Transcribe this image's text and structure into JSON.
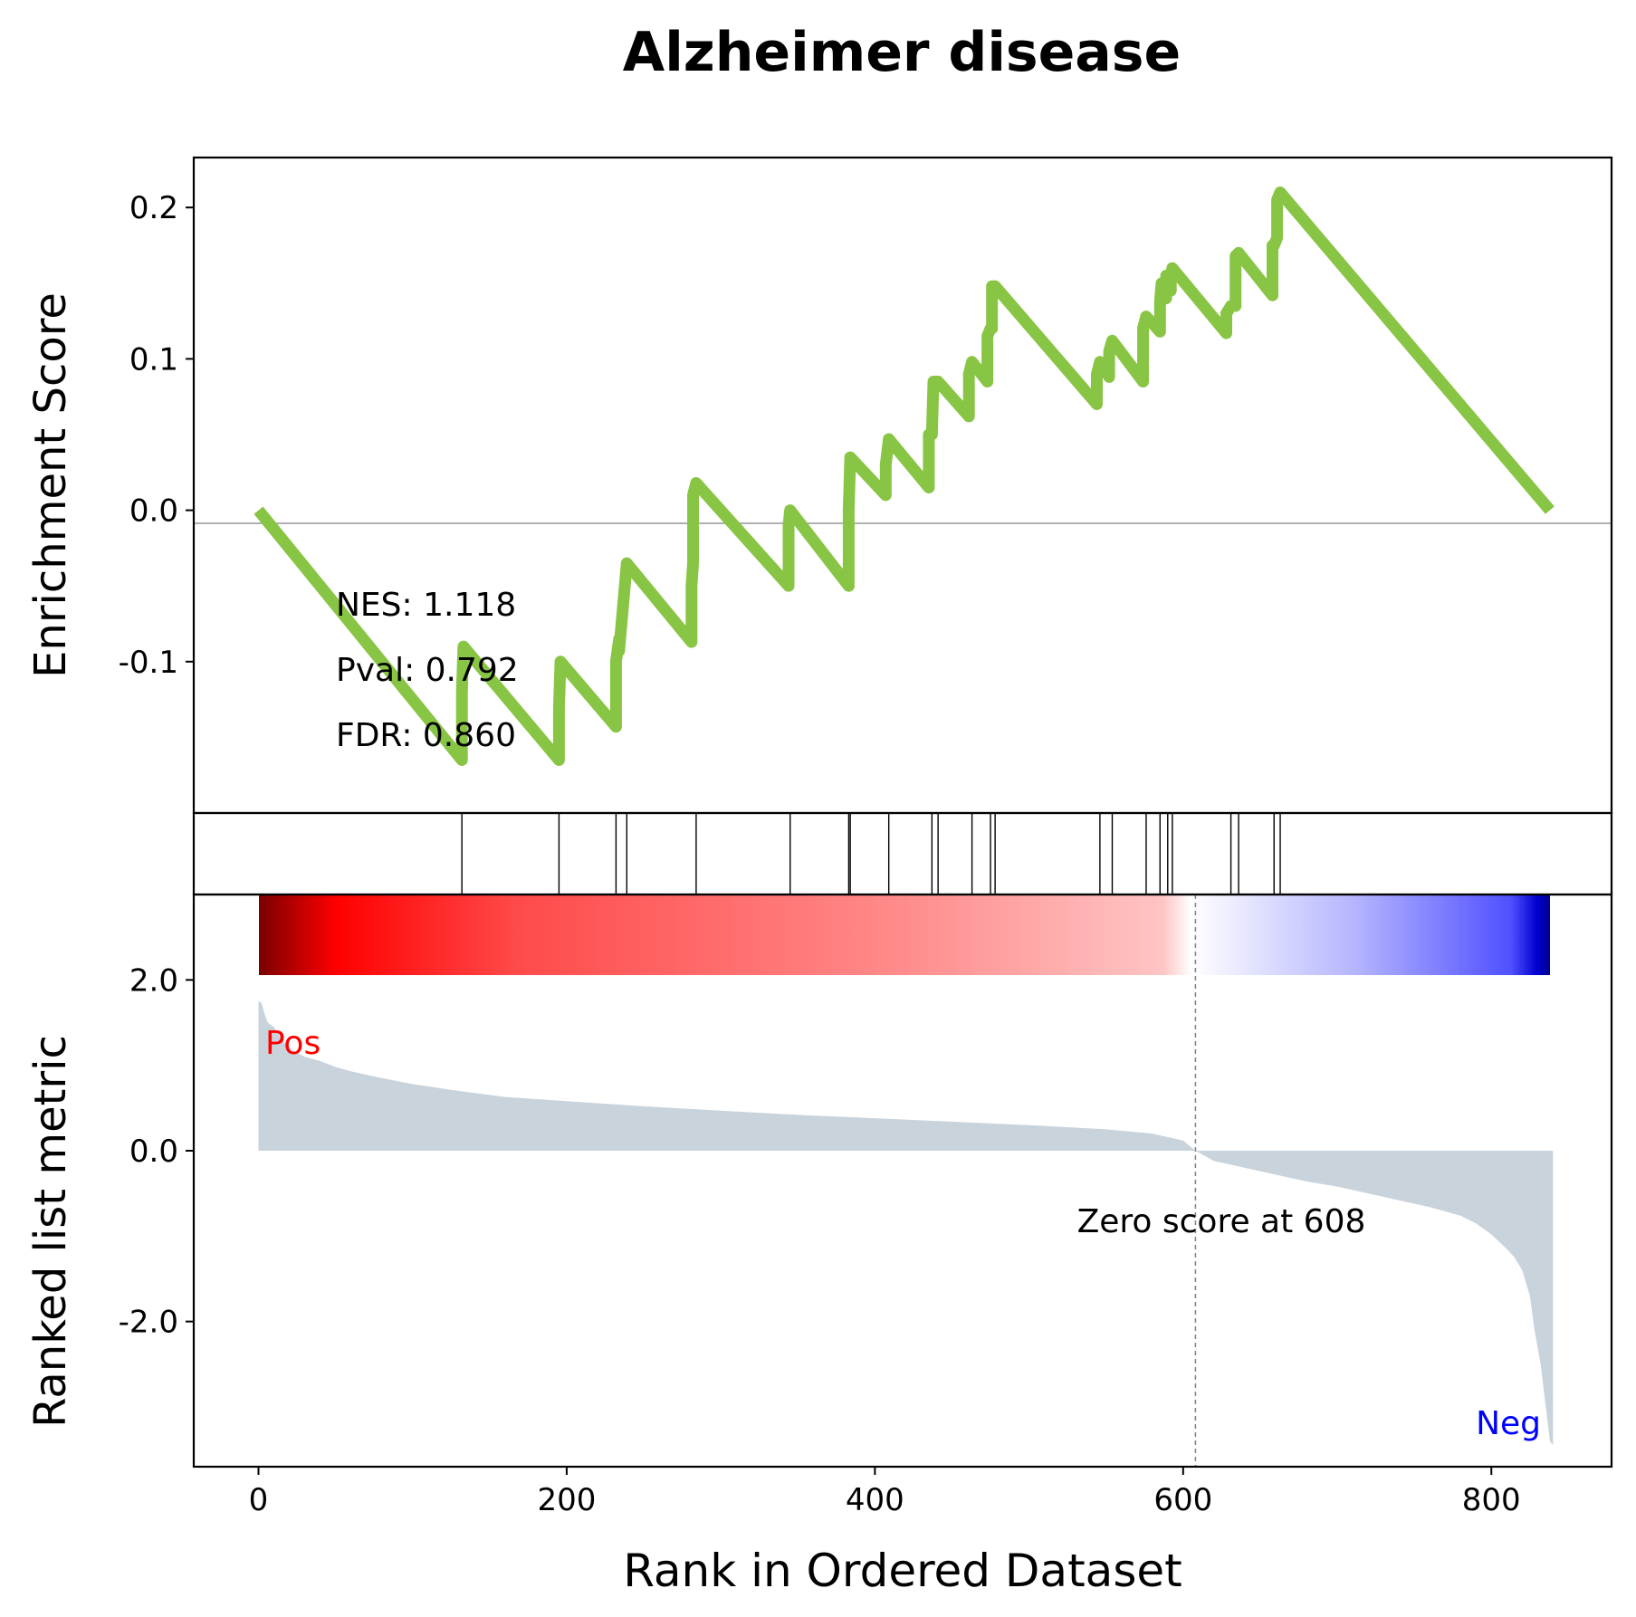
{
  "chart_data": {
    "type": "line",
    "title": "Alzheimer disease",
    "xlabel": "Rank in Ordered Dataset",
    "x_ticks": [
      0,
      200,
      400,
      600,
      800
    ],
    "xlim": [
      -42,
      878
    ],
    "enrichment_panel": {
      "ylabel": "Enrichment Score",
      "ylim": [
        -0.2,
        0.233
      ],
      "y_ticks": [
        -0.1,
        0.0,
        0.1,
        0.2
      ],
      "y_tick_labels": [
        "-0.1",
        "0.0",
        "0.1",
        "0.2"
      ],
      "color": "#88c544",
      "series": [
        {
          "x": [
            0,
            132,
            132,
            133,
            195,
            195,
            196,
            232,
            232,
            234,
            234,
            239,
            239,
            281,
            281,
            282,
            282,
            284,
            344,
            344,
            345,
            383,
            383,
            384,
            407,
            407,
            409,
            435,
            435,
            436,
            437,
            438,
            441,
            461,
            461,
            463,
            473,
            473,
            475,
            476,
            476,
            478,
            544,
            544,
            546,
            552,
            552,
            554,
            574,
            574,
            576,
            585,
            585,
            586,
            589,
            589,
            590,
            592,
            592,
            593,
            628,
            628,
            631,
            634,
            634,
            636,
            658,
            658,
            659,
            661,
            661,
            663,
            838
          ],
          "y": [
            0.0,
            -0.165,
            -0.12,
            -0.09,
            -0.165,
            -0.13,
            -0.1,
            -0.143,
            -0.1,
            -0.085,
            -0.093,
            -0.035,
            -0.035,
            -0.087,
            -0.05,
            -0.035,
            0.01,
            0.018,
            -0.05,
            -0.01,
            0.0,
            -0.05,
            0.0,
            0.035,
            0.01,
            0.03,
            0.047,
            0.015,
            0.05,
            0.05,
            0.05,
            0.085,
            0.085,
            0.062,
            0.09,
            0.098,
            0.085,
            0.115,
            0.12,
            0.12,
            0.148,
            0.148,
            0.07,
            0.09,
            0.098,
            0.088,
            0.105,
            0.112,
            0.085,
            0.12,
            0.128,
            0.118,
            0.138,
            0.15,
            0.14,
            0.155,
            0.155,
            0.145,
            0.155,
            0.16,
            0.117,
            0.13,
            0.135,
            0.135,
            0.168,
            0.17,
            0.142,
            0.175,
            0.175,
            0.18,
            0.205,
            0.21,
            0.0
          ]
        }
      ],
      "annotations": [
        "NES: 1.118",
        "Pval: 0.792",
        "FDR: 0.860"
      ]
    },
    "hits_panel": {
      "hit_ranks": [
        132,
        195,
        232,
        239,
        284,
        345,
        383,
        384,
        409,
        437,
        441,
        463,
        475,
        478,
        546,
        554,
        576,
        585,
        590,
        593,
        631,
        636,
        659,
        663
      ]
    },
    "ranked_panel": {
      "ylabel": "Ranked list metric",
      "ylim": [
        -3.7,
        3.0
      ],
      "y_ticks": [
        -2.0,
        0.0,
        2.0
      ],
      "y_tick_labels": [
        "-2.0",
        "0.0",
        "2.0"
      ],
      "fill_color": "#c9d3dc",
      "x": [
        0,
        2,
        4,
        6,
        10,
        15,
        20,
        30,
        40,
        50,
        60,
        80,
        100,
        130,
        160,
        200,
        250,
        300,
        350,
        400,
        450,
        500,
        550,
        580,
        600,
        608,
        620,
        640,
        660,
        680,
        700,
        720,
        740,
        760,
        780,
        790,
        800,
        810,
        815,
        820,
        825,
        828,
        830,
        832,
        834,
        836,
        838,
        840
      ],
      "y": [
        1.75,
        1.73,
        1.6,
        1.5,
        1.45,
        1.3,
        1.2,
        1.1,
        1.05,
        0.98,
        0.93,
        0.85,
        0.78,
        0.7,
        0.63,
        0.58,
        0.52,
        0.47,
        0.42,
        0.38,
        0.34,
        0.3,
        0.25,
        0.2,
        0.12,
        0.0,
        -0.12,
        -0.2,
        -0.28,
        -0.36,
        -0.42,
        -0.5,
        -0.58,
        -0.66,
        -0.76,
        -0.85,
        -0.98,
        -1.15,
        -1.25,
        -1.4,
        -1.7,
        -2.1,
        -2.3,
        -2.5,
        -2.8,
        -3.1,
        -3.4,
        -3.45
      ],
      "zero_crossing": 608,
      "zero_label": "Zero score at 608",
      "pos_label": "Pos",
      "neg_label": "Neg",
      "pos_color": "#ff0000",
      "neg_color": "#0000ff"
    }
  }
}
